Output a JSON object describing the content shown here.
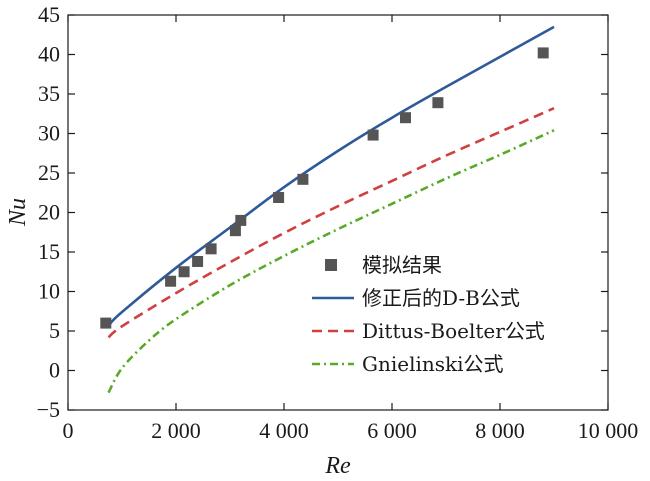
{
  "chart_data": {
    "type": "line",
    "xlabel": "Re",
    "ylabel": "Nu",
    "xlim": [
      0,
      10000
    ],
    "ylim": [
      -5,
      45
    ],
    "xticks": [
      0,
      2000,
      4000,
      6000,
      8000,
      10000
    ],
    "xtick_labels": [
      "0",
      "2 000",
      "4 000",
      "6 000",
      "8 000",
      "10 000"
    ],
    "yticks": [
      -5,
      0,
      5,
      10,
      15,
      20,
      25,
      30,
      35,
      40,
      45
    ],
    "ytick_labels": [
      "−5",
      "0",
      "5",
      "10",
      "15",
      "20",
      "25",
      "30",
      "35",
      "40",
      "45"
    ],
    "grid": false,
    "legend_position": "center-right",
    "series": [
      {
        "name": "模拟结果",
        "kind": "scatter",
        "marker": "square",
        "color": "#555555",
        "x": [
          700,
          1900,
          2150,
          2400,
          2650,
          3100,
          3200,
          3900,
          4350,
          5650,
          6250,
          6850,
          8800
        ],
        "y": [
          6.0,
          11.3,
          12.5,
          13.8,
          15.4,
          17.7,
          19.0,
          21.9,
          24.2,
          29.8,
          32.0,
          33.9,
          40.2
        ]
      },
      {
        "name": "修正后的D-B公式",
        "kind": "line",
        "dash": "solid",
        "color": "#2e5a9a",
        "x": [
          750,
          1000,
          2000,
          3000,
          4000,
          5000,
          6000,
          7000,
          8000,
          9000
        ],
        "y": [
          5.7,
          7.4,
          13.0,
          18.1,
          23.2,
          27.8,
          32.0,
          35.9,
          39.7,
          43.5
        ]
      },
      {
        "name": "Dittus-Boelter公式",
        "kind": "line",
        "dash": "dashed",
        "color": "#d04040",
        "x": [
          750,
          1000,
          2000,
          3000,
          4000,
          5000,
          6000,
          7000,
          8000,
          9000
        ],
        "y": [
          4.2,
          5.6,
          9.8,
          13.7,
          17.4,
          20.8,
          24.0,
          27.2,
          30.2,
          33.2
        ]
      },
      {
        "name": "Gnielinski公式",
        "kind": "line",
        "dash": "dashdot",
        "color": "#5aaa2a",
        "x": [
          750,
          1000,
          1500,
          2000,
          3000,
          4000,
          5000,
          6000,
          7000,
          8000,
          9000
        ],
        "y": [
          -2.8,
          0.3,
          3.8,
          6.5,
          10.8,
          14.5,
          17.9,
          21.1,
          24.3,
          27.3,
          30.4
        ]
      }
    ]
  }
}
